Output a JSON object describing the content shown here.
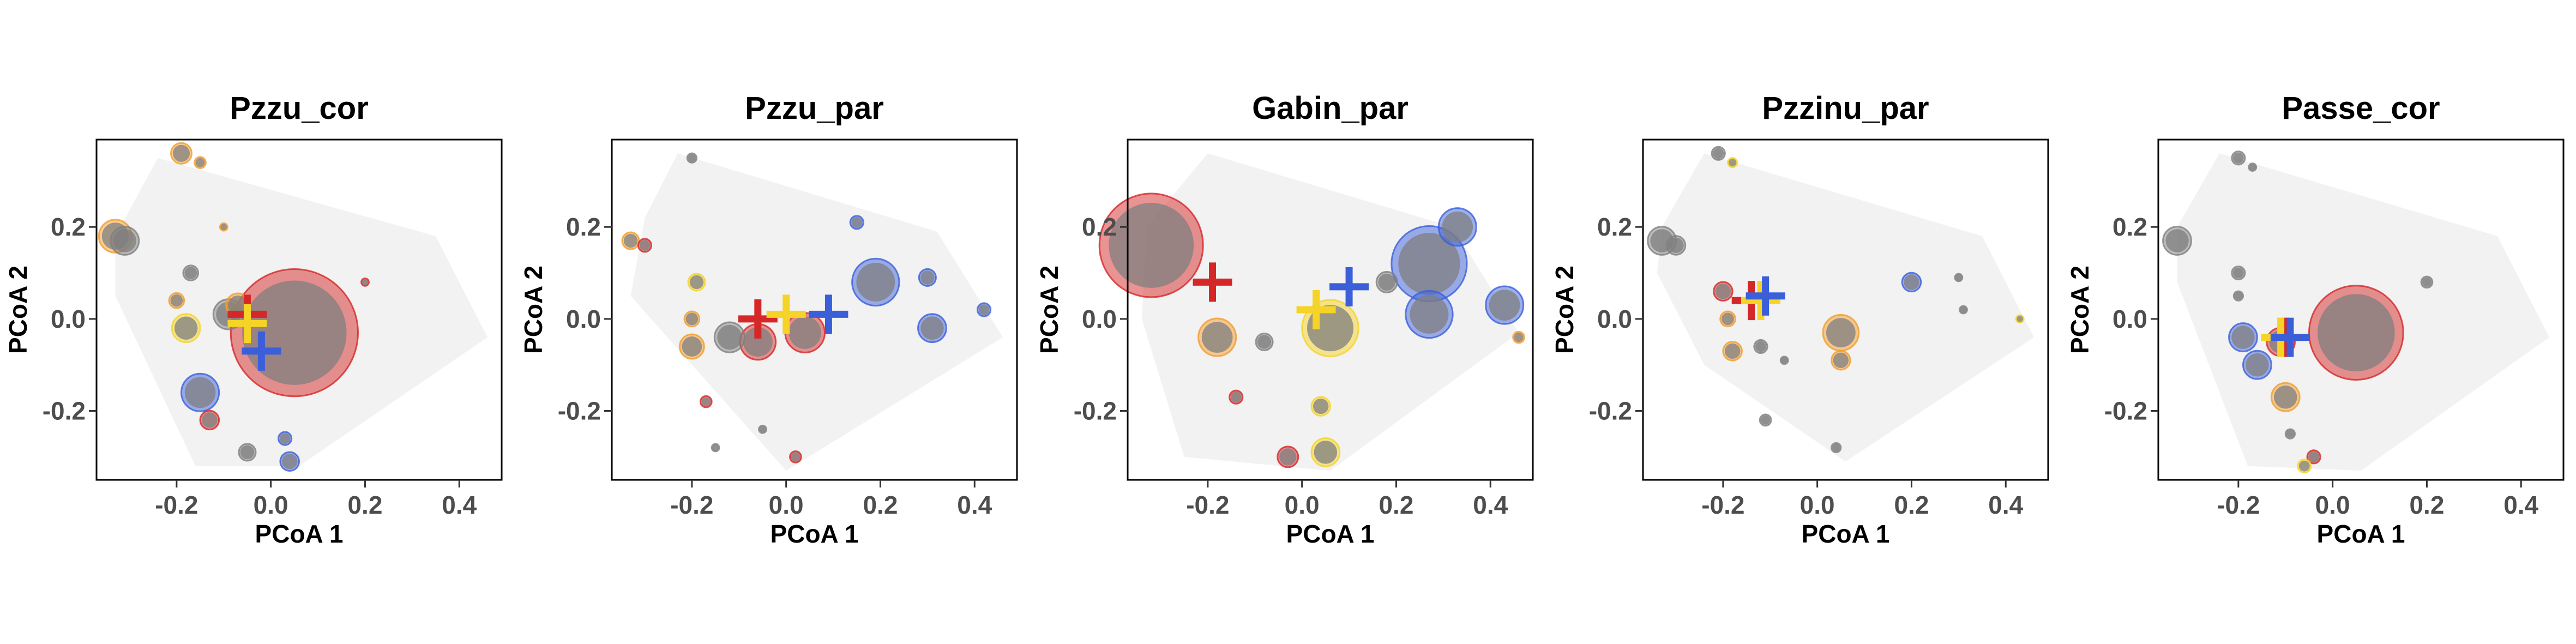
{
  "colors": {
    "red": "#d62728",
    "yellow": "#f5d327",
    "blue": "#3b5fd9",
    "orange": "#f39c2a",
    "grey": "#7f7f7f",
    "hull": "#f2f2f2"
  },
  "chart_data": [
    {
      "type": "scatter",
      "title": "Pzzu_cor",
      "xlabel": "PCoA 1",
      "ylabel": "PCoA 2",
      "xlim": [
        -0.37,
        0.49
      ],
      "ylim": [
        -0.35,
        0.39
      ],
      "xticks": [
        "-0.2",
        "0.0",
        "0.2",
        "0.4"
      ],
      "xtick_values": [
        -0.2,
        0.0,
        0.2,
        0.4
      ],
      "yticks": [
        "-0.2",
        "0.0",
        "0.2"
      ],
      "ytick_values": [
        -0.2,
        0.0,
        0.2
      ],
      "hull": [
        [
          -0.33,
          0.18
        ],
        [
          -0.24,
          0.35
        ],
        [
          0.35,
          0.18
        ],
        [
          0.46,
          -0.04
        ],
        [
          0.06,
          -0.32
        ],
        [
          -0.16,
          -0.32
        ],
        [
          -0.33,
          0.05
        ]
      ],
      "points": [
        {
          "x": 0.05,
          "y": -0.03,
          "r": 0.135,
          "c": "red"
        },
        {
          "x": -0.33,
          "y": 0.18,
          "r": 0.035,
          "c": "orange"
        },
        {
          "x": -0.31,
          "y": 0.17,
          "r": 0.03,
          "c": "grey"
        },
        {
          "x": -0.19,
          "y": 0.36,
          "r": 0.022,
          "c": "orange"
        },
        {
          "x": -0.15,
          "y": 0.34,
          "r": 0.012,
          "c": "orange"
        },
        {
          "x": -0.17,
          "y": 0.1,
          "r": 0.016,
          "c": "grey"
        },
        {
          "x": -0.1,
          "y": 0.2,
          "r": 0.008,
          "c": "orange"
        },
        {
          "x": -0.2,
          "y": 0.04,
          "r": 0.016,
          "c": "orange"
        },
        {
          "x": -0.18,
          "y": -0.02,
          "r": 0.03,
          "c": "yellow"
        },
        {
          "x": -0.09,
          "y": 0.01,
          "r": 0.032,
          "c": "grey"
        },
        {
          "x": -0.15,
          "y": -0.16,
          "r": 0.04,
          "c": "blue"
        },
        {
          "x": -0.13,
          "y": -0.22,
          "r": 0.02,
          "c": "red"
        },
        {
          "x": -0.05,
          "y": -0.29,
          "r": 0.018,
          "c": "grey"
        },
        {
          "x": 0.03,
          "y": -0.26,
          "r": 0.014,
          "c": "blue"
        },
        {
          "x": 0.04,
          "y": -0.31,
          "r": 0.02,
          "c": "blue"
        },
        {
          "x": 0.2,
          "y": 0.08,
          "r": 0.008,
          "c": "red"
        },
        {
          "x": -0.07,
          "y": 0.03,
          "r": 0.025,
          "c": "orange"
        }
      ],
      "centroids": [
        {
          "x": -0.05,
          "y": 0.01,
          "c": "red"
        },
        {
          "x": -0.05,
          "y": -0.01,
          "c": "yellow"
        },
        {
          "x": -0.02,
          "y": -0.07,
          "c": "blue"
        }
      ]
    },
    {
      "type": "scatter",
      "title": "Pzzu_par",
      "xlabel": "PCoA 1",
      "ylabel": "PCoA 2",
      "xlim": [
        -0.37,
        0.49
      ],
      "ylim": [
        -0.35,
        0.39
      ],
      "xticks": [
        "-0.2",
        "0.0",
        "0.2",
        "0.4"
      ],
      "xtick_values": [
        -0.2,
        0.0,
        0.2,
        0.4
      ],
      "yticks": [
        "-0.2",
        "0.0",
        "0.2"
      ],
      "ytick_values": [
        -0.2,
        0.0,
        0.2
      ],
      "hull": [
        [
          -0.3,
          0.22
        ],
        [
          -0.23,
          0.36
        ],
        [
          0.32,
          0.19
        ],
        [
          0.46,
          -0.04
        ],
        [
          0.0,
          -0.33
        ],
        [
          -0.33,
          0.05
        ]
      ],
      "points": [
        {
          "x": -0.33,
          "y": 0.17,
          "r": 0.018,
          "c": "orange"
        },
        {
          "x": -0.3,
          "y": 0.16,
          "r": 0.014,
          "c": "red"
        },
        {
          "x": -0.2,
          "y": 0.35,
          "r": 0.01,
          "c": "grey"
        },
        {
          "x": -0.19,
          "y": 0.08,
          "r": 0.018,
          "c": "yellow"
        },
        {
          "x": -0.2,
          "y": 0.0,
          "r": 0.016,
          "c": "orange"
        },
        {
          "x": -0.2,
          "y": -0.06,
          "r": 0.026,
          "c": "orange"
        },
        {
          "x": -0.12,
          "y": -0.04,
          "r": 0.032,
          "c": "grey"
        },
        {
          "x": -0.06,
          "y": -0.05,
          "r": 0.038,
          "c": "red"
        },
        {
          "x": 0.04,
          "y": -0.03,
          "r": 0.042,
          "c": "red"
        },
        {
          "x": 0.15,
          "y": 0.21,
          "r": 0.014,
          "c": "blue"
        },
        {
          "x": 0.19,
          "y": 0.08,
          "r": 0.05,
          "c": "blue"
        },
        {
          "x": 0.3,
          "y": 0.09,
          "r": 0.018,
          "c": "blue"
        },
        {
          "x": 0.31,
          "y": -0.02,
          "r": 0.03,
          "c": "blue"
        },
        {
          "x": 0.42,
          "y": 0.02,
          "r": 0.014,
          "c": "blue"
        },
        {
          "x": -0.17,
          "y": -0.18,
          "r": 0.012,
          "c": "red"
        },
        {
          "x": -0.05,
          "y": -0.24,
          "r": 0.008,
          "c": "grey"
        },
        {
          "x": 0.02,
          "y": -0.3,
          "r": 0.012,
          "c": "red"
        },
        {
          "x": -0.15,
          "y": -0.28,
          "r": 0.008,
          "c": "grey"
        }
      ],
      "centroids": [
        {
          "x": -0.06,
          "y": 0.0,
          "c": "red"
        },
        {
          "x": 0.0,
          "y": 0.01,
          "c": "yellow"
        },
        {
          "x": 0.09,
          "y": 0.01,
          "c": "blue"
        }
      ]
    },
    {
      "type": "scatter",
      "title": "Gabin_par",
      "xlabel": "PCoA 1",
      "ylabel": "PCoA 2",
      "xlim": [
        -0.37,
        0.49
      ],
      "ylim": [
        -0.35,
        0.39
      ],
      "xticks": [
        "-0.2",
        "0.0",
        "0.2",
        "0.4"
      ],
      "xtick_values": [
        -0.2,
        0.0,
        0.2,
        0.4
      ],
      "yticks": [
        "-0.2",
        "0.0",
        "0.2"
      ],
      "ytick_values": [
        -0.2,
        0.0,
        0.2
      ],
      "hull": [
        [
          -0.33,
          0.2
        ],
        [
          -0.2,
          0.36
        ],
        [
          0.32,
          0.2
        ],
        [
          0.46,
          -0.03
        ],
        [
          0.06,
          -0.33
        ],
        [
          -0.25,
          -0.3
        ],
        [
          -0.34,
          0.0
        ]
      ],
      "points": [
        {
          "x": -0.32,
          "y": 0.16,
          "r": 0.11,
          "c": "red"
        },
        {
          "x": -0.18,
          "y": -0.04,
          "r": 0.04,
          "c": "orange"
        },
        {
          "x": -0.08,
          "y": -0.05,
          "r": 0.018,
          "c": "grey"
        },
        {
          "x": 0.06,
          "y": -0.02,
          "r": 0.06,
          "c": "yellow"
        },
        {
          "x": 0.04,
          "y": -0.19,
          "r": 0.02,
          "c": "yellow"
        },
        {
          "x": 0.05,
          "y": -0.29,
          "r": 0.03,
          "c": "yellow"
        },
        {
          "x": -0.03,
          "y": -0.3,
          "r": 0.022,
          "c": "red"
        },
        {
          "x": -0.14,
          "y": -0.17,
          "r": 0.014,
          "c": "red"
        },
        {
          "x": 0.27,
          "y": 0.12,
          "r": 0.08,
          "c": "blue"
        },
        {
          "x": 0.33,
          "y": 0.2,
          "r": 0.04,
          "c": "blue"
        },
        {
          "x": 0.43,
          "y": 0.03,
          "r": 0.04,
          "c": "blue"
        },
        {
          "x": 0.27,
          "y": 0.01,
          "r": 0.05,
          "c": "blue"
        },
        {
          "x": 0.46,
          "y": -0.04,
          "r": 0.012,
          "c": "orange"
        },
        {
          "x": 0.18,
          "y": 0.08,
          "r": 0.022,
          "c": "grey"
        }
      ],
      "centroids": [
        {
          "x": -0.19,
          "y": 0.08,
          "c": "red"
        },
        {
          "x": 0.03,
          "y": 0.02,
          "c": "yellow"
        },
        {
          "x": 0.1,
          "y": 0.07,
          "c": "blue"
        }
      ]
    },
    {
      "type": "scatter",
      "title": "Pzzinu_par",
      "xlabel": "PCoA 1",
      "ylabel": "PCoA 2",
      "xlim": [
        -0.37,
        0.49
      ],
      "ylim": [
        -0.35,
        0.39
      ],
      "xticks": [
        "-0.2",
        "0.0",
        "0.2",
        "0.4"
      ],
      "xtick_values": [
        -0.2,
        0.0,
        0.2,
        0.4
      ],
      "yticks": [
        "-0.2",
        "0.0",
        "0.2"
      ],
      "ytick_values": [
        -0.2,
        0.0,
        0.2
      ],
      "hull": [
        [
          -0.33,
          0.2
        ],
        [
          -0.24,
          0.36
        ],
        [
          0.35,
          0.18
        ],
        [
          0.46,
          -0.04
        ],
        [
          0.06,
          -0.31
        ],
        [
          -0.24,
          -0.1
        ],
        [
          -0.34,
          0.1
        ]
      ],
      "points": [
        {
          "x": -0.33,
          "y": 0.17,
          "r": 0.03,
          "c": "grey"
        },
        {
          "x": -0.3,
          "y": 0.16,
          "r": 0.02,
          "c": "grey"
        },
        {
          "x": -0.21,
          "y": 0.36,
          "r": 0.014,
          "c": "grey"
        },
        {
          "x": -0.18,
          "y": 0.34,
          "r": 0.01,
          "c": "yellow"
        },
        {
          "x": -0.2,
          "y": 0.06,
          "r": 0.02,
          "c": "red"
        },
        {
          "x": -0.19,
          "y": 0.0,
          "r": 0.016,
          "c": "orange"
        },
        {
          "x": -0.18,
          "y": -0.07,
          "r": 0.02,
          "c": "orange"
        },
        {
          "x": -0.12,
          "y": -0.06,
          "r": 0.014,
          "c": "grey"
        },
        {
          "x": -0.07,
          "y": -0.09,
          "r": 0.008,
          "c": "grey"
        },
        {
          "x": 0.05,
          "y": -0.03,
          "r": 0.038,
          "c": "orange"
        },
        {
          "x": 0.05,
          "y": -0.09,
          "r": 0.02,
          "c": "orange"
        },
        {
          "x": 0.2,
          "y": 0.08,
          "r": 0.02,
          "c": "blue"
        },
        {
          "x": 0.3,
          "y": 0.09,
          "r": 0.008,
          "c": "grey"
        },
        {
          "x": 0.31,
          "y": 0.02,
          "r": 0.008,
          "c": "grey"
        },
        {
          "x": 0.43,
          "y": 0.0,
          "r": 0.008,
          "c": "yellow"
        },
        {
          "x": -0.11,
          "y": -0.22,
          "r": 0.012,
          "c": "grey"
        },
        {
          "x": 0.04,
          "y": -0.28,
          "r": 0.01,
          "c": "grey"
        }
      ],
      "centroids": [
        {
          "x": -0.14,
          "y": 0.04,
          "c": "red"
        },
        {
          "x": -0.12,
          "y": 0.04,
          "c": "yellow"
        },
        {
          "x": -0.11,
          "y": 0.05,
          "c": "blue"
        }
      ]
    },
    {
      "type": "scatter",
      "title": "Passe_cor",
      "xlabel": "PCoA 1",
      "ylabel": "PCoA 2",
      "xlim": [
        -0.37,
        0.49
      ],
      "ylim": [
        -0.35,
        0.39
      ],
      "xticks": [
        "-0.2",
        "0.0",
        "0.2",
        "0.4"
      ],
      "xtick_values": [
        -0.2,
        0.0,
        0.2,
        0.4
      ],
      "yticks": [
        "-0.2",
        "0.0",
        "0.2"
      ],
      "ytick_values": [
        -0.2,
        0.0,
        0.2
      ],
      "hull": [
        [
          -0.33,
          0.2
        ],
        [
          -0.24,
          0.36
        ],
        [
          0.35,
          0.18
        ],
        [
          0.46,
          -0.04
        ],
        [
          0.06,
          -0.33
        ],
        [
          -0.18,
          -0.32
        ],
        [
          -0.33,
          0.08
        ]
      ],
      "points": [
        {
          "x": -0.33,
          "y": 0.17,
          "r": 0.03,
          "c": "grey"
        },
        {
          "x": -0.2,
          "y": 0.35,
          "r": 0.014,
          "c": "grey"
        },
        {
          "x": -0.17,
          "y": 0.33,
          "r": 0.008,
          "c": "grey"
        },
        {
          "x": -0.2,
          "y": 0.1,
          "r": 0.014,
          "c": "grey"
        },
        {
          "x": -0.2,
          "y": 0.05,
          "r": 0.01,
          "c": "grey"
        },
        {
          "x": -0.19,
          "y": -0.04,
          "r": 0.03,
          "c": "blue"
        },
        {
          "x": -0.16,
          "y": -0.1,
          "r": 0.03,
          "c": "blue"
        },
        {
          "x": -0.11,
          "y": -0.05,
          "r": 0.03,
          "c": "red"
        },
        {
          "x": 0.05,
          "y": -0.03,
          "r": 0.1,
          "c": "red"
        },
        {
          "x": -0.1,
          "y": -0.17,
          "r": 0.03,
          "c": "orange"
        },
        {
          "x": -0.09,
          "y": -0.25,
          "r": 0.01,
          "c": "grey"
        },
        {
          "x": -0.04,
          "y": -0.3,
          "r": 0.014,
          "c": "red"
        },
        {
          "x": -0.06,
          "y": -0.32,
          "r": 0.014,
          "c": "yellow"
        },
        {
          "x": 0.2,
          "y": 0.08,
          "r": 0.012,
          "c": "grey"
        }
      ],
      "centroids": [
        {
          "x": -0.1,
          "y": -0.04,
          "c": "red"
        },
        {
          "x": -0.11,
          "y": -0.04,
          "c": "yellow"
        },
        {
          "x": -0.09,
          "y": -0.04,
          "c": "blue"
        }
      ]
    }
  ]
}
